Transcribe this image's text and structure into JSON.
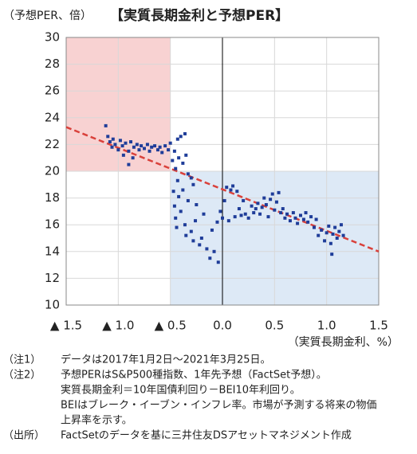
{
  "chart_data": {
    "type": "scatter",
    "title": "【実質長期金利と予想PER】",
    "y_label": "（予想PER、倍）",
    "x_label": "（実質長期金利、%）",
    "color": "#1f3d99",
    "xlim": [
      -1.5,
      1.5
    ],
    "ylim": [
      10,
      30
    ],
    "xticks": [
      {
        "value": -1.5,
        "label": "▲ 1.5"
      },
      {
        "value": -1.0,
        "label": "▲ 1.0"
      },
      {
        "value": -0.5,
        "label": "▲ 0.5"
      },
      {
        "value": 0,
        "label": "0.0"
      },
      0.5,
      {
        "value": 1.0,
        "label": "1.0"
      },
      1.5
    ],
    "yticks": [
      10,
      12,
      14,
      16,
      18,
      20,
      22,
      24,
      26,
      28,
      30
    ],
    "grid": true,
    "shaded_regions": [
      {
        "xlim": [
          -1.5,
          -0.5
        ],
        "ylim": [
          20,
          30
        ],
        "color": "#f8d2d2"
      },
      {
        "xlim": [
          -0.5,
          1.5
        ],
        "ylim": [
          10,
          20
        ],
        "color": "#dde9f6"
      }
    ],
    "trend_line": {
      "x": [
        -1.5,
        1.5
      ],
      "y": [
        23.3,
        14.0
      ],
      "color": "#d9413b"
    },
    "x": [
      -1.12,
      -1.1,
      -1.08,
      -1.06,
      -1.05,
      -1.03,
      -1.0,
      -0.98,
      -0.96,
      -0.95,
      -0.93,
      -0.9,
      -0.9,
      -0.88,
      -0.86,
      -0.85,
      -0.82,
      -0.8,
      -0.78,
      -0.75,
      -0.72,
      -0.7,
      -0.68,
      -0.65,
      -0.62,
      -0.6,
      -0.58,
      -0.55,
      -0.52,
      -0.5,
      -0.48,
      -0.46,
      -0.45,
      -0.43,
      -0.42,
      -0.4,
      -0.38,
      -0.36,
      -0.35,
      -0.33,
      -0.3,
      -0.28,
      -0.47,
      -0.46,
      -0.45,
      -0.44,
      -0.43,
      -0.42,
      -0.4,
      -0.38,
      -0.36,
      -0.35,
      -0.33,
      -0.3,
      -0.28,
      -0.26,
      -0.25,
      -0.22,
      -0.2,
      -0.18,
      -0.15,
      -0.12,
      -0.1,
      -0.08,
      -0.05,
      -0.04,
      -0.02,
      0.0,
      0.02,
      0.04,
      0.06,
      0.08,
      0.1,
      0.12,
      0.14,
      0.16,
      0.18,
      0.2,
      0.22,
      0.25,
      0.28,
      0.3,
      0.32,
      0.34,
      0.36,
      0.38,
      0.4,
      0.42,
      0.44,
      0.46,
      0.48,
      0.5,
      0.52,
      0.54,
      0.56,
      0.58,
      0.6,
      0.62,
      0.65,
      0.68,
      0.7,
      0.72,
      0.75,
      0.78,
      0.8,
      0.82,
      0.85,
      0.88,
      0.9,
      0.92,
      0.95,
      0.98,
      1.0,
      1.02,
      1.04,
      1.05,
      1.06,
      1.08,
      1.1,
      1.12,
      1.14,
      1.16
    ],
    "y": [
      23.4,
      22.6,
      22.2,
      21.8,
      22.4,
      22.0,
      21.6,
      22.3,
      21.9,
      21.2,
      22.1,
      21.5,
      20.5,
      22.2,
      21.0,
      21.8,
      22.0,
      21.6,
      21.9,
      21.7,
      22.0,
      21.5,
      21.8,
      21.9,
      21.6,
      21.8,
      21.4,
      21.9,
      21.6,
      22.1,
      20.8,
      21.5,
      20.2,
      22.4,
      21.0,
      22.6,
      20.6,
      22.8,
      21.2,
      19.8,
      19.5,
      19.0,
      18.5,
      17.4,
      16.5,
      15.8,
      19.3,
      18.1,
      17.0,
      18.6,
      16.0,
      15.2,
      17.8,
      15.5,
      14.8,
      16.3,
      17.5,
      14.5,
      15.0,
      16.8,
      14.2,
      13.5,
      15.6,
      14.0,
      16.2,
      13.2,
      17.0,
      16.5,
      17.8,
      18.8,
      16.3,
      18.6,
      18.9,
      16.6,
      18.5,
      17.2,
      16.7,
      17.8,
      16.8,
      16.5,
      17.4,
      16.9,
      17.2,
      17.6,
      16.8,
      17.3,
      18.0,
      17.5,
      16.6,
      17.9,
      18.3,
      17.1,
      17.7,
      18.4,
      16.9,
      17.2,
      16.5,
      16.8,
      16.3,
      16.9,
      16.5,
      16.1,
      16.7,
      16.4,
      16.9,
      16.2,
      16.6,
      15.8,
      16.4,
      15.2,
      15.6,
      14.8,
      15.4,
      15.9,
      14.6,
      13.8,
      15.3,
      15.8,
      15.0,
      15.5,
      16.0,
      15.2
    ],
    "notes": [
      {
        "label": "（注1）",
        "lines": [
          "データは2017年1月2日～2021年3月25日。"
        ]
      },
      {
        "label": "（注2）",
        "lines": [
          "予想PERはS&P500種指数、1年先予想（FactSet予想）。",
          "実質長期金利＝10年国債利回り－BEI10年利回り。",
          "BEIはブレーク・イーブン・インフレ率。市場が予測する将来の物価",
          "上昇率を示す。"
        ]
      },
      {
        "label": "（出所）",
        "lines": [
          "FactSetのデータを基に三井住友DSアセットマネジメント作成"
        ]
      }
    ]
  }
}
